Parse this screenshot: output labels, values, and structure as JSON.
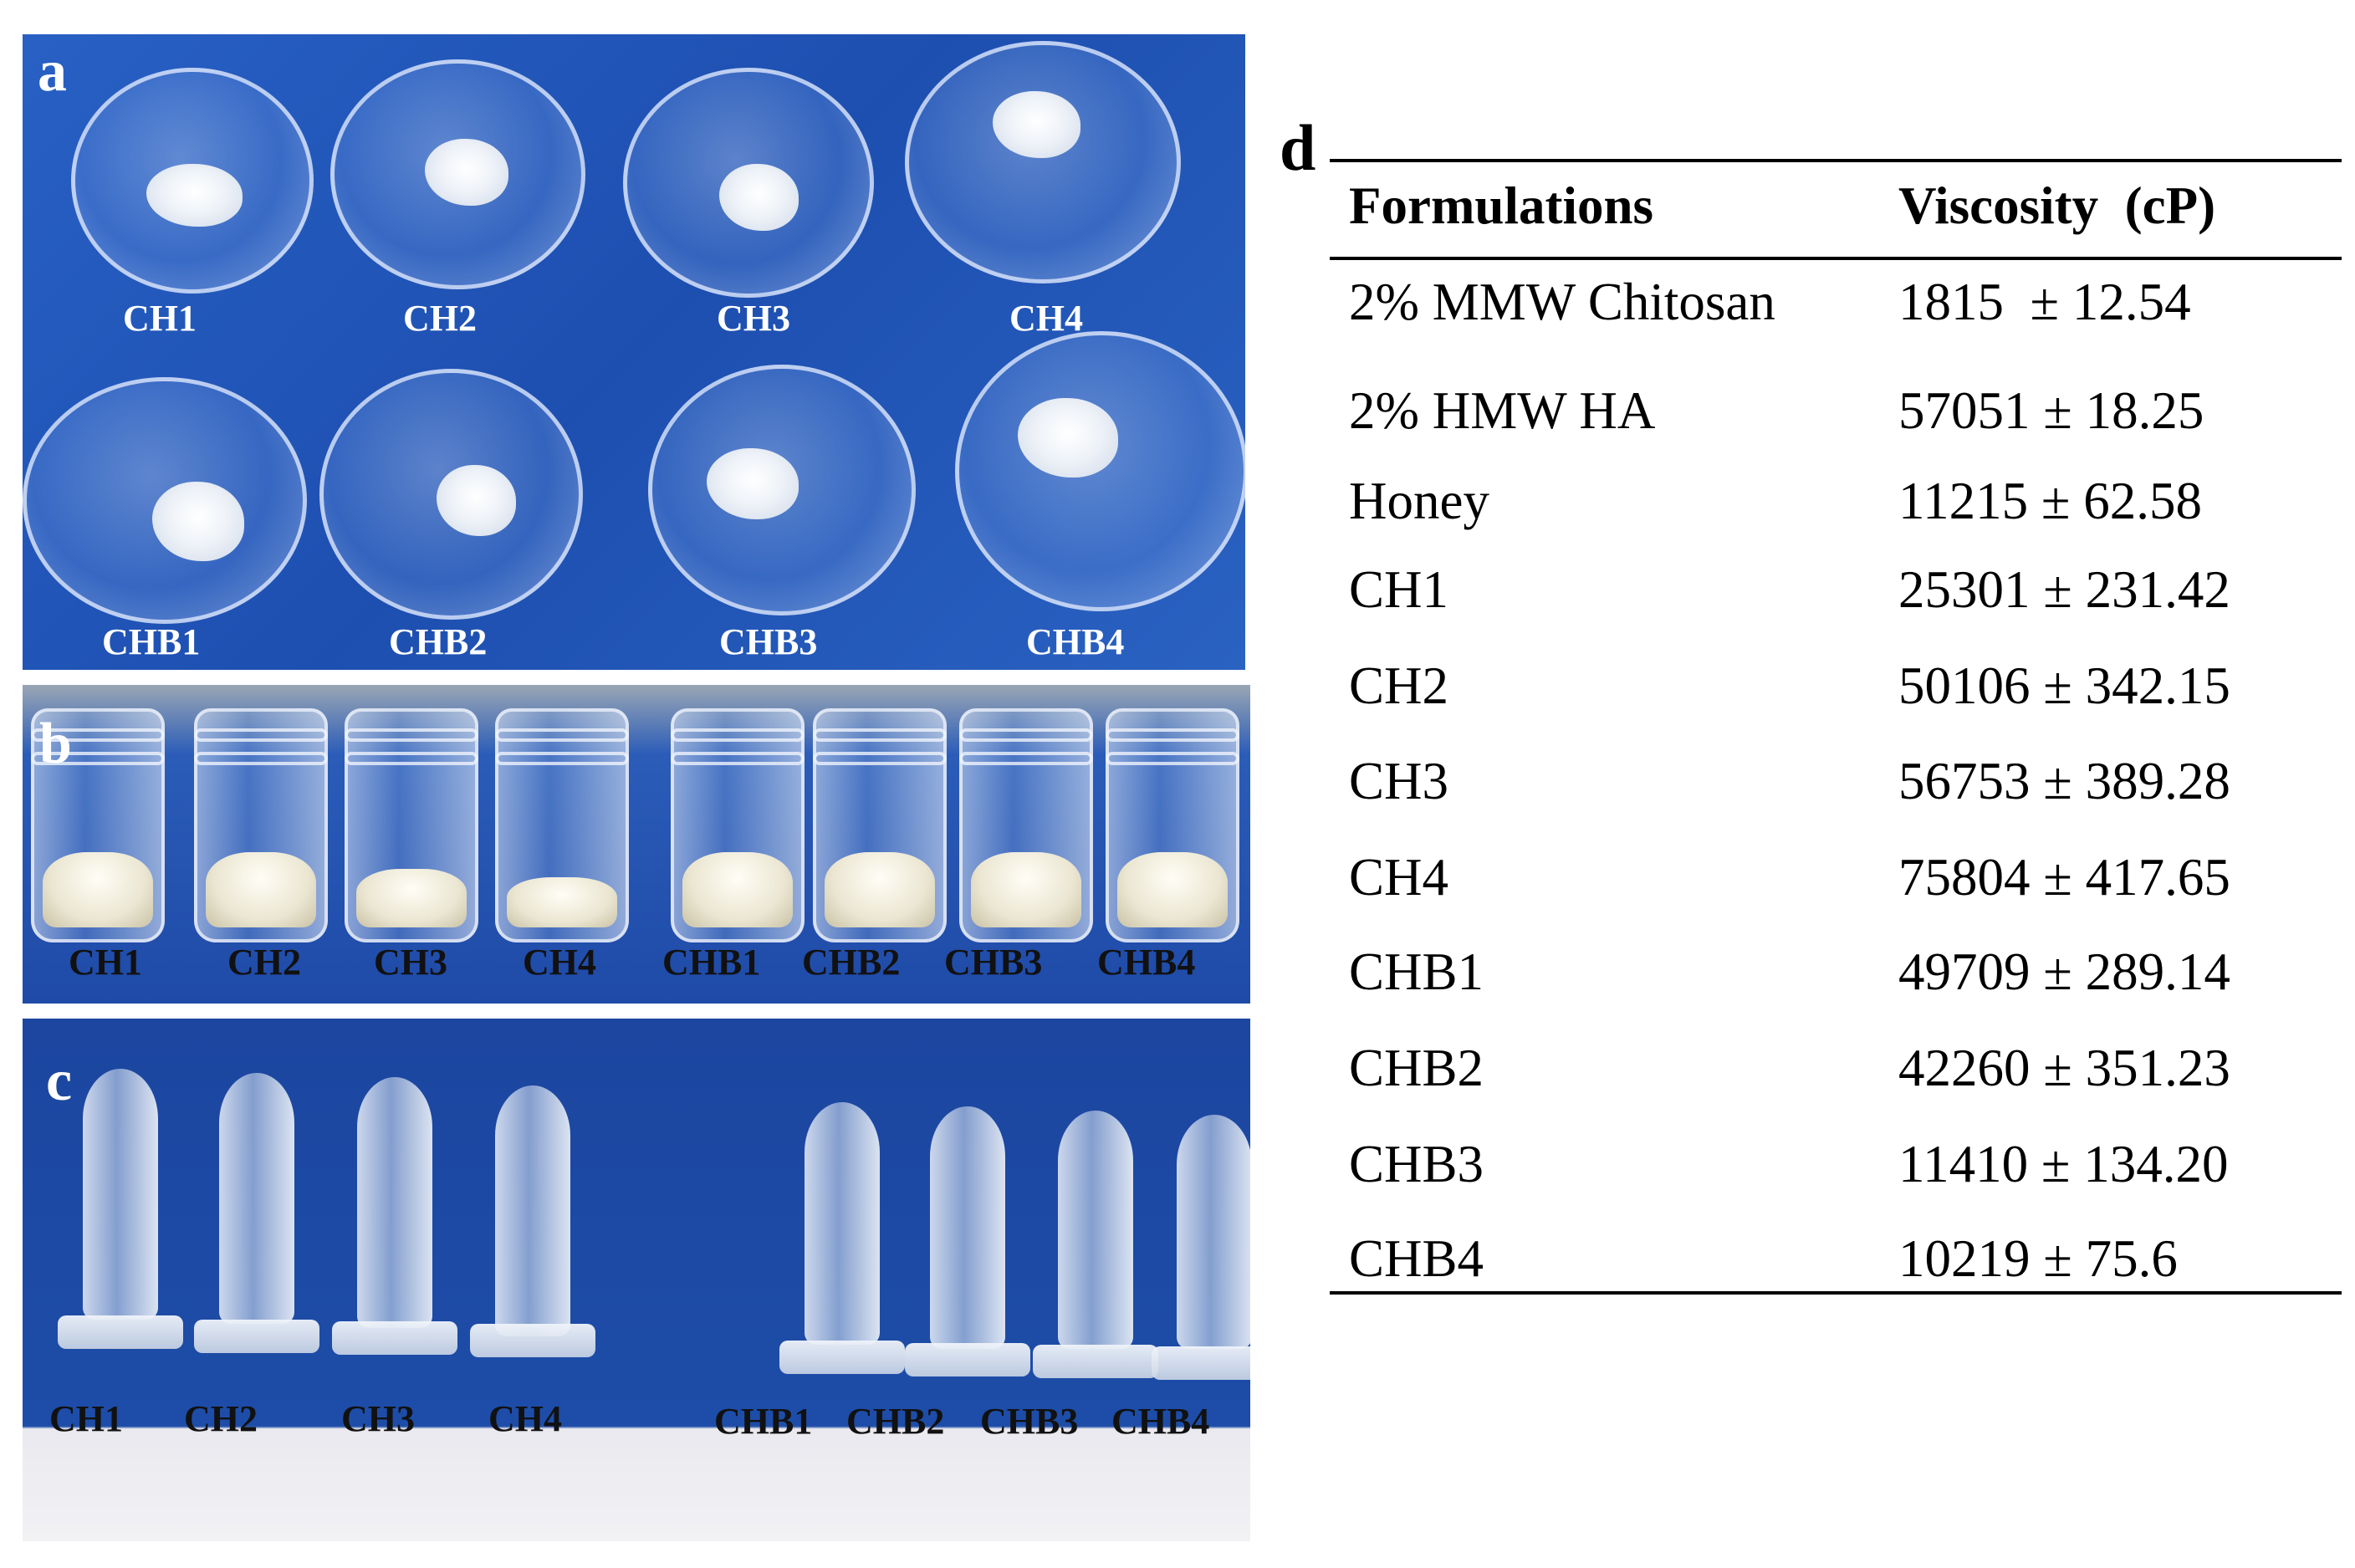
{
  "panels": {
    "a": {
      "letter": "a",
      "top_labels": [
        "CH1",
        "CH2",
        "CH3",
        "CH4"
      ],
      "bottom_labels": [
        "CHB1",
        "CHB2",
        "CHB3",
        "CHB4"
      ]
    },
    "b": {
      "letter": "b",
      "labels": [
        "CH1",
        "CH2",
        "CH3",
        "CH4",
        "CHB1",
        "CHB2",
        "CHB3",
        "CHB4"
      ]
    },
    "c": {
      "letter": "c",
      "labels": [
        "CH1",
        "CH2",
        "CH3",
        "CH4",
        "CHB1",
        "CHB2",
        "CHB3",
        "CHB4"
      ]
    }
  },
  "table": {
    "letter": "d",
    "headers": [
      "Formulations",
      "Viscosity  (cP)"
    ],
    "rows": [
      {
        "formulation": "2% MMW Chitosan",
        "viscosity": "1815  ± 12.54"
      },
      {
        "formulation": "2% HMW HA",
        "viscosity": "57051 ± 18.25"
      },
      {
        "formulation": "Honey",
        "viscosity": "11215 ± 62.58"
      },
      {
        "formulation": "CH1",
        "viscosity": "25301 ± 231.42"
      },
      {
        "formulation": "CH2",
        "viscosity": "50106 ± 342.15"
      },
      {
        "formulation": "CH3",
        "viscosity": "56753 ± 389.28"
      },
      {
        "formulation": "CH4",
        "viscosity": "75804 ± 417.65"
      },
      {
        "formulation": "CHB1",
        "viscosity": "49709 ± 289.14"
      },
      {
        "formulation": "CHB2",
        "viscosity": "42260 ± 351.23"
      },
      {
        "formulation": "CHB3",
        "viscosity": "11410 ± 134.20"
      },
      {
        "formulation": "CHB4",
        "viscosity": "10219 ± 75.6"
      }
    ]
  }
}
